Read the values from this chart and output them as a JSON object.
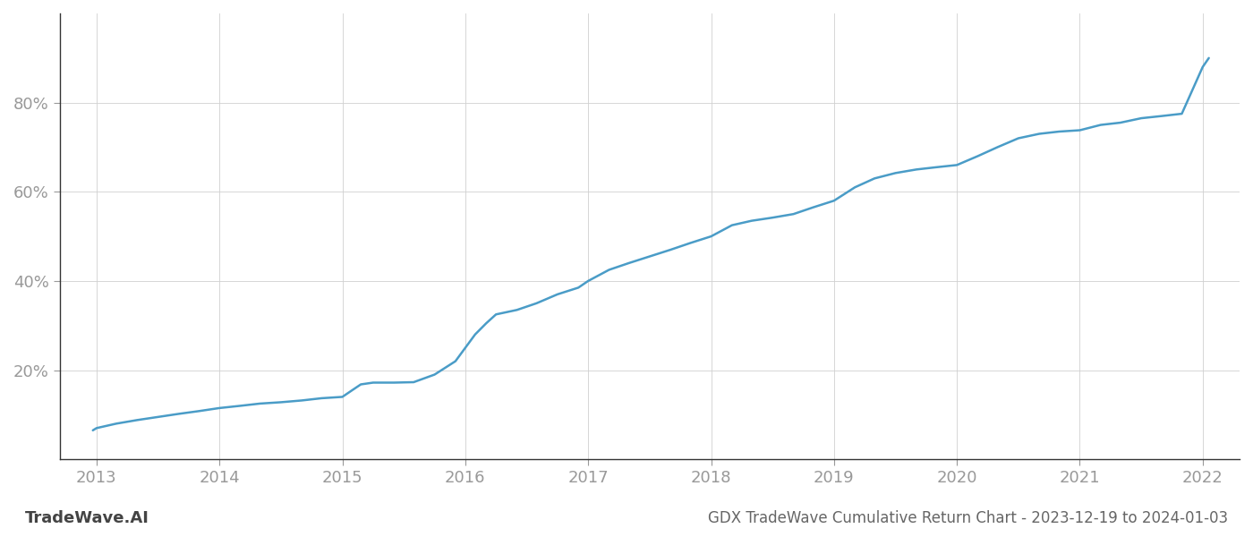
{
  "title": "GDX TradeWave Cumulative Return Chart - 2023-12-19 to 2024-01-03",
  "watermark": "TradeWave.AI",
  "line_color": "#4a9cc7",
  "background_color": "#ffffff",
  "grid_color": "#d0d0d0",
  "x_values": [
    2012.97,
    2013.0,
    2013.08,
    2013.16,
    2013.33,
    2013.5,
    2013.67,
    2013.83,
    2014.0,
    2014.17,
    2014.33,
    2014.5,
    2014.67,
    2014.83,
    2015.0,
    2015.08,
    2015.15,
    2015.25,
    2015.42,
    2015.58,
    2015.75,
    2015.92,
    2016.0,
    2016.08,
    2016.17,
    2016.25,
    2016.42,
    2016.58,
    2016.75,
    2016.92,
    2017.0,
    2017.17,
    2017.33,
    2017.5,
    2017.67,
    2017.83,
    2018.0,
    2018.17,
    2018.33,
    2018.5,
    2018.67,
    2018.83,
    2019.0,
    2019.17,
    2019.33,
    2019.5,
    2019.67,
    2019.83,
    2020.0,
    2020.17,
    2020.33,
    2020.5,
    2020.67,
    2020.83,
    2021.0,
    2021.17,
    2021.33,
    2021.5,
    2021.67,
    2021.83,
    2022.0,
    2022.05
  ],
  "y_values": [
    6.5,
    7.0,
    7.5,
    8.0,
    8.8,
    9.5,
    10.2,
    10.8,
    11.5,
    12.0,
    12.5,
    12.8,
    13.2,
    13.7,
    14.0,
    15.5,
    16.8,
    17.2,
    17.2,
    17.3,
    19.0,
    22.0,
    25.0,
    28.0,
    30.5,
    32.5,
    33.5,
    35.0,
    37.0,
    38.5,
    40.0,
    42.5,
    44.0,
    45.5,
    47.0,
    48.5,
    50.0,
    52.5,
    53.5,
    54.2,
    55.0,
    56.5,
    58.0,
    61.0,
    63.0,
    64.2,
    65.0,
    65.5,
    66.0,
    68.0,
    70.0,
    72.0,
    73.0,
    73.5,
    73.8,
    75.0,
    75.5,
    76.5,
    77.0,
    77.5,
    88.0,
    90.0
  ],
  "xlim": [
    2012.7,
    2022.3
  ],
  "ylim": [
    0,
    100
  ],
  "yticks": [
    20,
    40,
    60,
    80
  ],
  "ytick_labels": [
    "20%",
    "40%",
    "60%",
    "80%"
  ],
  "xticks": [
    2013,
    2014,
    2015,
    2016,
    2017,
    2018,
    2019,
    2020,
    2021,
    2022
  ],
  "xtick_labels": [
    "2013",
    "2014",
    "2015",
    "2016",
    "2017",
    "2018",
    "2019",
    "2020",
    "2021",
    "2022"
  ],
  "line_width": 1.8,
  "left_spine_color": "#333333",
  "bottom_spine_color": "#333333",
  "tick_color": "#999999",
  "title_color": "#666666",
  "watermark_color": "#444444",
  "title_fontsize": 12,
  "tick_fontsize": 13,
  "watermark_fontsize": 13
}
